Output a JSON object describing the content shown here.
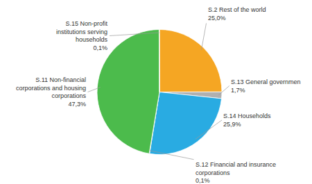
{
  "chart_data": {
    "type": "pie",
    "categories": [
      "S.2 Rest of the world",
      "S.13 General governmen",
      "S.14 Households",
      "S.12 Financial and insurance\ncorporations",
      "S.11 Non-financial\ncorporations and housing\ncorporations",
      "S.15 Non-profit\ninstitutions serving\nhouseholds"
    ],
    "values": [
      25.0,
      1.7,
      25.9,
      0.1,
      47.3,
      0.1
    ],
    "value_labels": [
      "25,0%",
      "1,7%",
      "25,9%",
      "0,1%",
      "47,3%",
      "0,1%"
    ],
    "colors": [
      "#F5A623",
      "#B0B0B0",
      "#29ABE2",
      "#111111",
      "#4CBB4C",
      "#4CBB4C"
    ],
    "data_labels": true
  }
}
